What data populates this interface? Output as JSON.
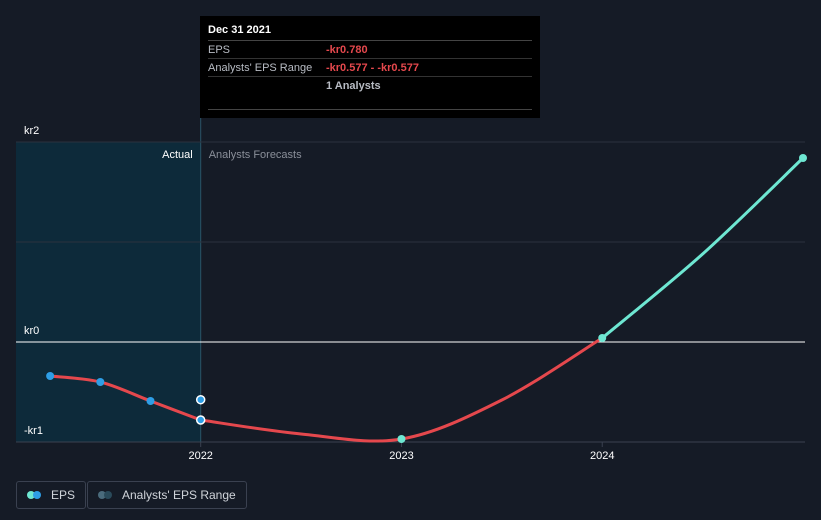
{
  "tooltip": {
    "date": "Dec 31 2021",
    "eps_label": "EPS",
    "eps_value": "-kr0.780",
    "range_label": "Analysts' EPS Range",
    "range_value": "-kr0.577 - -kr0.577",
    "analysts": "1 Analysts"
  },
  "regions": {
    "actual": "Actual",
    "forecast": "Analysts Forecasts"
  },
  "legend": {
    "eps": "EPS",
    "range": "Analysts' EPS Range"
  },
  "colors": {
    "background": "#151b26",
    "actual_shade": "#0d2a3a",
    "eps_line": "#e5484d",
    "forecast_line": "#6ee7d2",
    "actual_point": "#2e9ee6",
    "range_point": "#4a6b7c"
  },
  "chart_data": {
    "type": "line",
    "ylim": [
      -1,
      2
    ],
    "y_ticks": [
      {
        "value": 2,
        "label": "kr2"
      },
      {
        "value": 0,
        "label": "kr0"
      },
      {
        "value": -1,
        "label": "-kr1"
      }
    ],
    "x_ticks": [
      {
        "value": 2022,
        "label": "2022"
      },
      {
        "value": 2023,
        "label": "2023"
      },
      {
        "value": 2024,
        "label": "2024"
      }
    ],
    "xlim": [
      2021.08,
      2025.01
    ],
    "actual_end": 2022.0,
    "series": [
      {
        "name": "EPS (actual)",
        "points": [
          {
            "x": 2021.25,
            "y": -0.34
          },
          {
            "x": 2021.5,
            "y": -0.4
          },
          {
            "x": 2021.75,
            "y": -0.59
          },
          {
            "x": 2022.0,
            "y": -0.78
          }
        ]
      },
      {
        "name": "EPS (forecast)",
        "points": [
          {
            "x": 2022.0,
            "y": -0.78
          },
          {
            "x": 2022.5,
            "y": -0.92
          },
          {
            "x": 2023.0,
            "y": -0.97
          },
          {
            "x": 2023.5,
            "y": -0.58
          },
          {
            "x": 2024.0,
            "y": 0.04
          }
        ]
      },
      {
        "name": "EPS (forecast positive)",
        "points": [
          {
            "x": 2024.0,
            "y": 0.04
          },
          {
            "x": 2024.5,
            "y": 0.88
          },
          {
            "x": 2025.0,
            "y": 1.84
          }
        ]
      }
    ],
    "range_points": [
      {
        "x": 2022.0,
        "y": -0.577
      }
    ]
  }
}
